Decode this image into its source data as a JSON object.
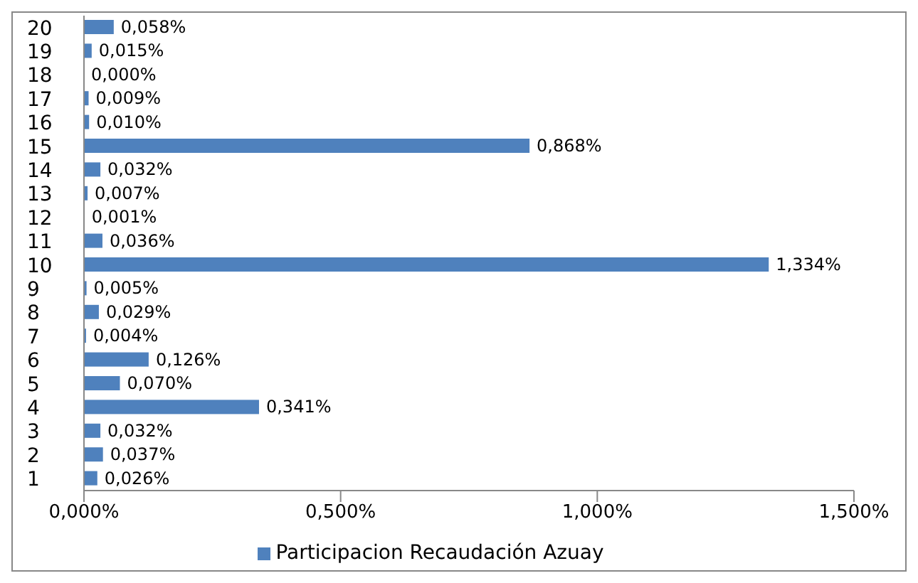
{
  "chart_data": {
    "type": "bar",
    "orientation": "horizontal",
    "categories": [
      "20",
      "19",
      "18",
      "17",
      "16",
      "15",
      "14",
      "13",
      "12",
      "11",
      "10",
      "9",
      "8",
      "7",
      "6",
      "5",
      "4",
      "3",
      "2",
      "1"
    ],
    "series": [
      {
        "name": "Participacion Recaudación Azuay",
        "color": "#4f81bd",
        "values": [
          0.058,
          0.015,
          0.0,
          0.009,
          0.01,
          0.868,
          0.032,
          0.007,
          0.001,
          0.036,
          1.334,
          0.005,
          0.029,
          0.004,
          0.126,
          0.07,
          0.341,
          0.032,
          0.037,
          0.026
        ],
        "value_labels": [
          "0,058%",
          "0,015%",
          "0,000%",
          "0,009%",
          "0,010%",
          "0,868%",
          "0,032%",
          "0,007%",
          "0,001%",
          "0,036%",
          "1,334%",
          "0,005%",
          "0,029%",
          "0,004%",
          "0,126%",
          "0,070%",
          "0,341%",
          "0,032%",
          "0,037%",
          "0,026%"
        ]
      }
    ],
    "xlim": [
      0,
      1.5
    ],
    "xticks": [
      {
        "value": 0,
        "label": "0,000%"
      },
      {
        "value": 0.5,
        "label": "0,500%"
      },
      {
        "value": 1,
        "label": "1,000%"
      },
      {
        "value": 1.5,
        "label": "1,500%"
      }
    ],
    "grid": false,
    "legend": "bottom"
  }
}
